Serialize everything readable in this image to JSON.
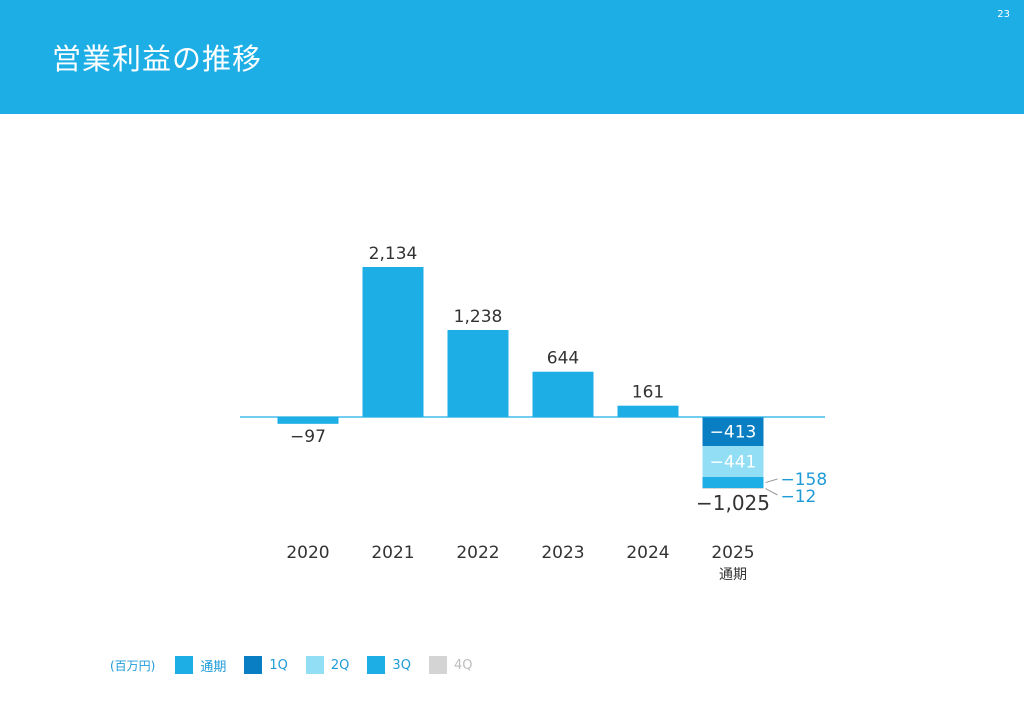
{
  "page": {
    "title": "営業利益の推移",
    "page_number": "23"
  },
  "chart_data": {
    "type": "bar",
    "categories": [
      "2020",
      "2021",
      "2022",
      "2023",
      "2024",
      "2025"
    ],
    "category_sublabels": [
      "",
      "",
      "",
      "",
      "",
      "通期"
    ],
    "values": [
      -97,
      2134,
      1238,
      644,
      161,
      -1025
    ],
    "value_labels": [
      "−97",
      "2,134",
      "1,238",
      "644",
      "161",
      "−1,025"
    ],
    "stacked_2025": [
      {
        "name": "1Q",
        "value": -413,
        "label": "−413"
      },
      {
        "name": "2Q",
        "value": -441,
        "label": "−441"
      },
      {
        "name": "3Q",
        "value": -158,
        "label": "−158"
      },
      {
        "name": "4Q",
        "value": -12,
        "label": "−12"
      }
    ],
    "unit": "(百万円)",
    "legend": [
      {
        "name": "通期",
        "color": "#1eaee6"
      },
      {
        "name": "1Q",
        "color": "#0a7ec2"
      },
      {
        "name": "2Q",
        "color": "#92def5"
      },
      {
        "name": "3Q",
        "color": "#1eaee6"
      },
      {
        "name": "4Q",
        "color": "#d4d4d4"
      }
    ],
    "legend_placement": "bottom-left",
    "colors": {
      "annual": "#1eaee6",
      "q1": "#0a7ec2",
      "q2": "#92def5",
      "q3": "#1eaee6",
      "q4": "#d4d4d4",
      "axis": "#1eaee6",
      "label": "#333333",
      "quarter_label": "#1e9bd7"
    },
    "grid": false
  }
}
